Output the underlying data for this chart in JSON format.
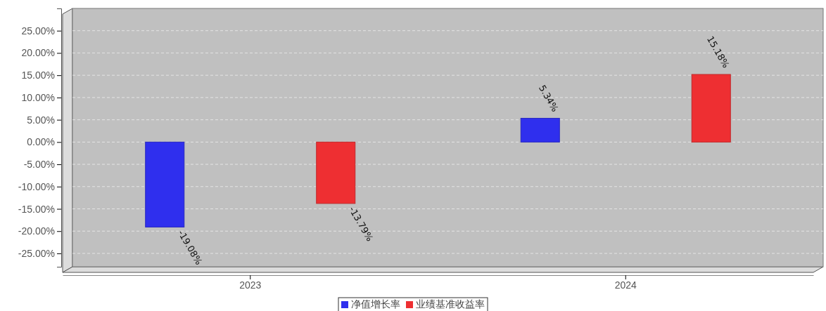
{
  "chart_data": {
    "type": "bar",
    "categories": [
      "2023",
      "2024"
    ],
    "series": [
      {
        "name": "净值增长率",
        "color": "#2f2fee",
        "values": [
          -19.08,
          5.34
        ],
        "value_labels": [
          "-19.08%",
          "5.34%"
        ]
      },
      {
        "name": "业绩基准收益率",
        "color": "#ee2f32",
        "values": [
          -13.79,
          15.18
        ],
        "value_labels": [
          "-13.79%",
          "15.18%"
        ]
      }
    ],
    "ylim": [
      -28,
      30
    ],
    "yticks": [
      {
        "value": -25,
        "label": "-25.00%"
      },
      {
        "value": -20,
        "label": "-20.00%"
      },
      {
        "value": -15,
        "label": "-15.00%"
      },
      {
        "value": -10,
        "label": "-10.00%"
      },
      {
        "value": -5,
        "label": "-5.00%"
      },
      {
        "value": 0,
        "label": "0.00%"
      },
      {
        "value": 5,
        "label": "5.00%"
      },
      {
        "value": 10,
        "label": "10.00%"
      },
      {
        "value": 15,
        "label": "15.00%"
      },
      {
        "value": 20,
        "label": "20.00%"
      },
      {
        "value": 25,
        "label": "25.00%"
      }
    ],
    "grid": "y",
    "legend": "bottom"
  }
}
